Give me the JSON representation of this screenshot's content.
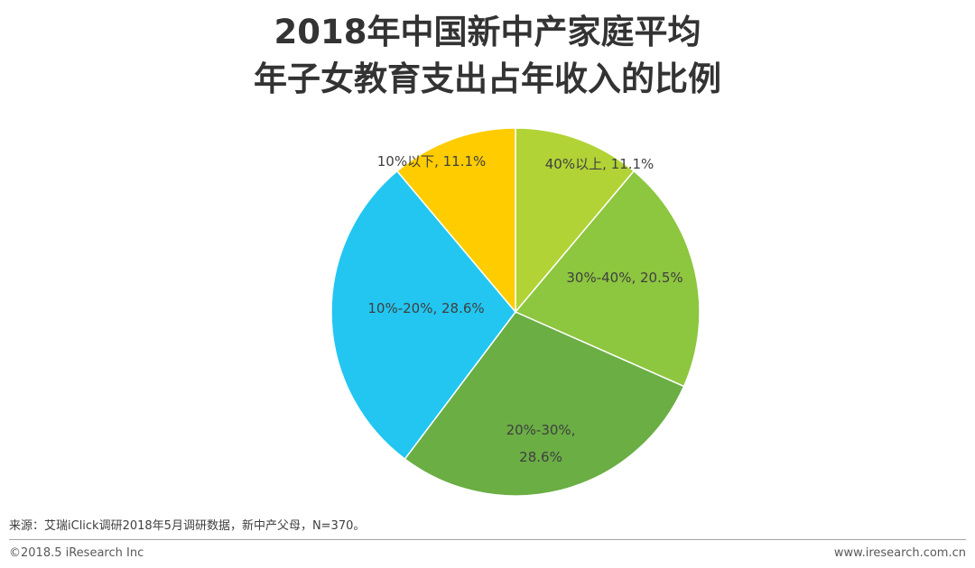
{
  "chart_data": {
    "type": "pie",
    "title_lines": [
      "2018年中国新中产家庭平均",
      "年子女教育支出占年收入的比例"
    ],
    "slices": [
      {
        "name": "40%以上",
        "value": 11.1,
        "label": "40%以上, 11.1%",
        "color": "#b1d335"
      },
      {
        "name": "30%-40%",
        "value": 20.5,
        "label": "30%-40%, 20.5%",
        "color": "#8dc63f"
      },
      {
        "name": "20%-30%",
        "value": 28.6,
        "label": "20%-30%,\n28.6%",
        "color": "#6aae44"
      },
      {
        "name": "10%-20%",
        "value": 28.6,
        "label": "10%-20%, 28.6%",
        "color": "#22c6f1"
      },
      {
        "name": "10%以下",
        "value": 11.1,
        "label": "10%以下, 11.1%",
        "color": "#ffcc00"
      }
    ],
    "start": "12 o'clock",
    "direction": "clockwise",
    "legend": "none"
  },
  "footer": {
    "source": "来源：艾瑞iClick调研2018年5月调研数据，新中产父母，N=370。",
    "copyright": "©2018.5 iResearch Inc",
    "website": "www.iresearch.com.cn"
  }
}
